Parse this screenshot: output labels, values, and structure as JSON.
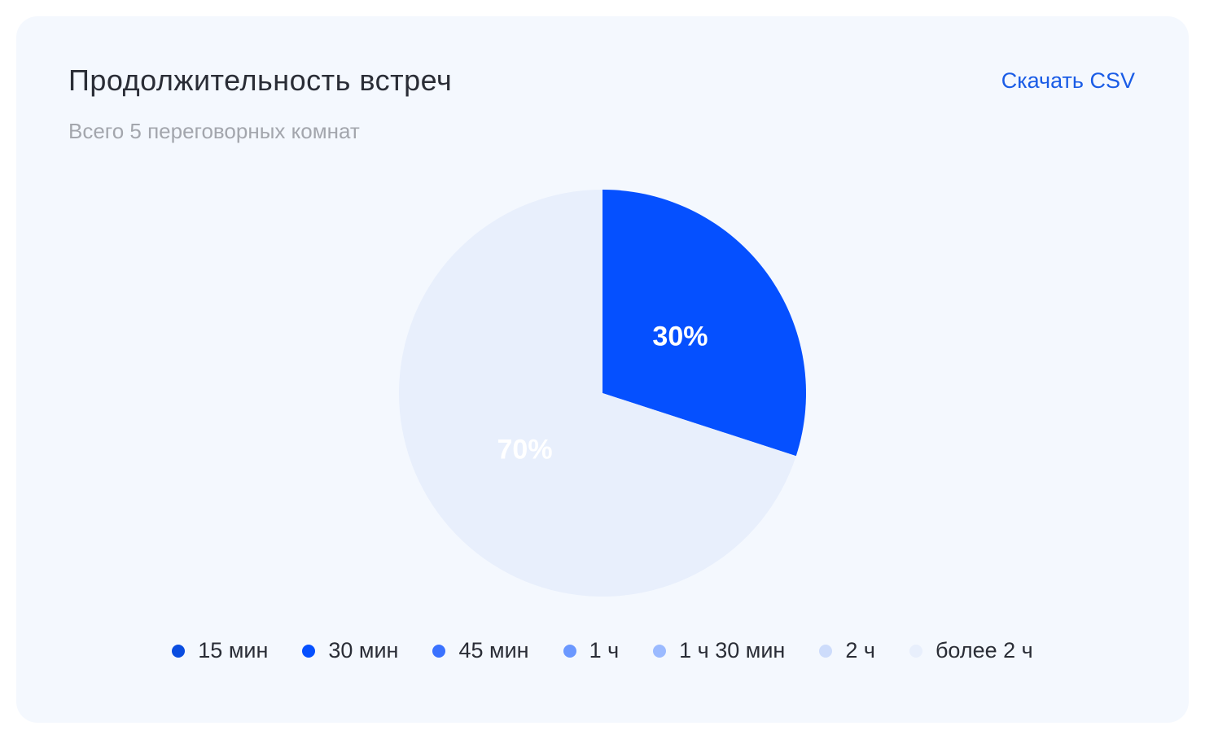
{
  "card": {
    "title": "Продолжительность встреч",
    "subtitle": "Всего 5 переговорных комнат",
    "download_label": "Скачать CSV"
  },
  "chart_data": {
    "type": "pie",
    "categories": [
      "15 мин",
      "30 мин",
      "45 мин",
      "1 ч",
      "1 ч 30 мин",
      "2 ч",
      "более 2 ч"
    ],
    "values": [
      0,
      30,
      0,
      0,
      0,
      0,
      70
    ],
    "slice_labels": [
      "",
      "30%",
      "",
      "",
      "",
      "",
      "70%"
    ],
    "colors": [
      "#0a4de0",
      "#0550ff",
      "#3a72ff",
      "#6b98ff",
      "#9bbaff",
      "#cddcfb",
      "#e8effc"
    ],
    "legend_position": "bottom"
  }
}
